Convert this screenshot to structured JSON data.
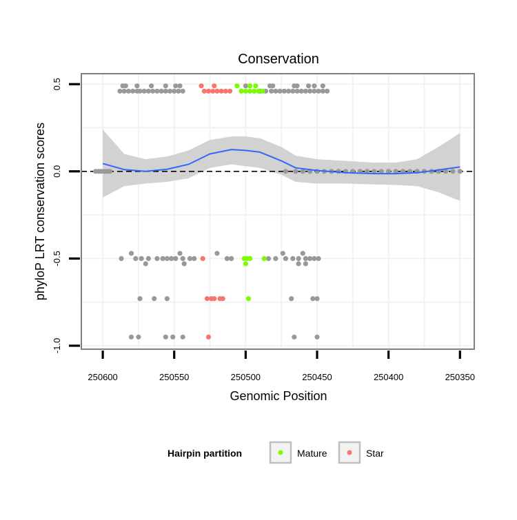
{
  "chart_data": {
    "type": "scatter",
    "title": "Conservation",
    "xlabel": "Genomic Position",
    "ylabel": "phyloP LRT conservation scores",
    "x_reversed": true,
    "xlim": [
      250615,
      250340
    ],
    "ylim": [
      -1.02,
      0.56
    ],
    "x_ticks": [
      250600,
      250550,
      250500,
      250450,
      250400,
      250350
    ],
    "x_tick_labels": [
      "250600",
      "250550",
      "250500",
      "250450",
      "250400",
      "250350"
    ],
    "y_ticks": [
      0.5,
      0.0,
      -0.5,
      -1.0
    ],
    "y_tick_labels": [
      "0.5",
      "0.0",
      "-0.5",
      "-1.0"
    ],
    "reference_line": {
      "y": 0,
      "style": "dashed"
    },
    "legend": {
      "title": "Hairpin partition",
      "position": "bottom",
      "entries": [
        {
          "label": "Mature",
          "color": "#7CFC00"
        },
        {
          "label": "Star",
          "color": "#F8766D"
        }
      ]
    },
    "colors": {
      "other": "#999999",
      "Mature": "#7CFC00",
      "Star": "#F8766D",
      "smooth": "#3366FF",
      "band": "#D0D0D0"
    },
    "series": [
      {
        "name": "Other",
        "points": [
          [
            250588,
            0.46
          ],
          [
            250585,
            0.46
          ],
          [
            250582,
            0.46
          ],
          [
            250579,
            0.46
          ],
          [
            250576,
            0.46
          ],
          [
            250574,
            0.46
          ],
          [
            250571,
            0.46
          ],
          [
            250568,
            0.46
          ],
          [
            250565,
            0.46
          ],
          [
            250562,
            0.46
          ],
          [
            250559,
            0.46
          ],
          [
            250556,
            0.46
          ],
          [
            250553,
            0.46
          ],
          [
            250550,
            0.46
          ],
          [
            250547,
            0.46
          ],
          [
            250544,
            0.46
          ],
          [
            250586,
            0.49
          ],
          [
            250584,
            0.49
          ],
          [
            250576,
            0.49
          ],
          [
            250566,
            0.49
          ],
          [
            250556,
            0.49
          ],
          [
            250549,
            0.49
          ],
          [
            250546,
            0.49
          ],
          [
            250490,
            0.46
          ],
          [
            250486,
            0.46
          ],
          [
            250482,
            0.46
          ],
          [
            250479,
            0.46
          ],
          [
            250476,
            0.46
          ],
          [
            250473,
            0.46
          ],
          [
            250470,
            0.46
          ],
          [
            250467,
            0.46
          ],
          [
            250464,
            0.46
          ],
          [
            250461,
            0.46
          ],
          [
            250458,
            0.46
          ],
          [
            250455,
            0.46
          ],
          [
            250452,
            0.46
          ],
          [
            250449,
            0.46
          ],
          [
            250446,
            0.46
          ],
          [
            250443,
            0.46
          ],
          [
            250483,
            0.49
          ],
          [
            250481,
            0.49
          ],
          [
            250466,
            0.49
          ],
          [
            250464,
            0.49
          ],
          [
            250456,
            0.49
          ],
          [
            250452,
            0.49
          ],
          [
            250446,
            0.49
          ],
          [
            250500,
            0.49
          ],
          [
            250605,
            0
          ],
          [
            250603,
            0
          ],
          [
            250601,
            0
          ],
          [
            250599,
            0
          ],
          [
            250597,
            0
          ],
          [
            250595,
            0
          ],
          [
            250472,
            0
          ],
          [
            250465,
            0
          ],
          [
            250460,
            0
          ],
          [
            250455,
            0
          ],
          [
            250450,
            0
          ],
          [
            250445,
            0
          ],
          [
            250440,
            0
          ],
          [
            250435,
            0
          ],
          [
            250430,
            0
          ],
          [
            250425,
            0
          ],
          [
            250420,
            0
          ],
          [
            250415,
            0
          ],
          [
            250410,
            0
          ],
          [
            250405,
            0
          ],
          [
            250400,
            0
          ],
          [
            250395,
            0
          ],
          [
            250390,
            0
          ],
          [
            250385,
            0
          ],
          [
            250380,
            0
          ],
          [
            250375,
            0
          ],
          [
            250370,
            0
          ],
          [
            250365,
            0
          ],
          [
            250360,
            0
          ],
          [
            250355,
            0
          ],
          [
            250350,
            0
          ],
          [
            250587,
            -0.5
          ],
          [
            250577,
            -0.5
          ],
          [
            250573,
            -0.5
          ],
          [
            250568,
            -0.5
          ],
          [
            250562,
            -0.5
          ],
          [
            250558,
            -0.5
          ],
          [
            250555,
            -0.5
          ],
          [
            250552,
            -0.5
          ],
          [
            250549,
            -0.5
          ],
          [
            250544,
            -0.5
          ],
          [
            250539,
            -0.5
          ],
          [
            250536,
            -0.5
          ],
          [
            250513,
            -0.5
          ],
          [
            250510,
            -0.5
          ],
          [
            250484,
            -0.5
          ],
          [
            250479,
            -0.5
          ],
          [
            250472,
            -0.5
          ],
          [
            250467,
            -0.5
          ],
          [
            250463,
            -0.5
          ],
          [
            250458,
            -0.5
          ],
          [
            250455,
            -0.5
          ],
          [
            250452,
            -0.5
          ],
          [
            250449,
            -0.5
          ],
          [
            250580,
            -0.47
          ],
          [
            250546,
            -0.47
          ],
          [
            250520,
            -0.47
          ],
          [
            250474,
            -0.47
          ],
          [
            250460,
            -0.47
          ],
          [
            250570,
            -0.53
          ],
          [
            250543,
            -0.53
          ],
          [
            250463,
            -0.53
          ],
          [
            250458,
            -0.53
          ],
          [
            250574,
            -0.73
          ],
          [
            250564,
            -0.73
          ],
          [
            250555,
            -0.73
          ],
          [
            250468,
            -0.73
          ],
          [
            250453,
            -0.73
          ],
          [
            250450,
            -0.73
          ],
          [
            250580,
            -0.95
          ],
          [
            250575,
            -0.95
          ],
          [
            250556,
            -0.95
          ],
          [
            250551,
            -0.95
          ],
          [
            250544,
            -0.95
          ],
          [
            250466,
            -0.95
          ],
          [
            250450,
            -0.95
          ]
        ]
      },
      {
        "name": "Mature",
        "points": [
          [
            250503,
            0.46
          ],
          [
            250500,
            0.46
          ],
          [
            250497,
            0.46
          ],
          [
            250494,
            0.46
          ],
          [
            250491,
            0.46
          ],
          [
            250488,
            0.46
          ],
          [
            250506,
            0.49
          ],
          [
            250497,
            0.49
          ],
          [
            250493,
            0.49
          ],
          [
            250501,
            -0.5
          ],
          [
            250499,
            -0.5
          ],
          [
            250497,
            -0.5
          ],
          [
            250487,
            -0.5
          ],
          [
            250500,
            -0.53
          ],
          [
            250498,
            -0.73
          ]
        ]
      },
      {
        "name": "Star",
        "points": [
          [
            250529,
            0.46
          ],
          [
            250526,
            0.46
          ],
          [
            250523,
            0.46
          ],
          [
            250520,
            0.46
          ],
          [
            250517,
            0.46
          ],
          [
            250514,
            0.46
          ],
          [
            250511,
            0.46
          ],
          [
            250531,
            0.49
          ],
          [
            250522,
            0.49
          ],
          [
            250530,
            -0.5
          ],
          [
            250527,
            -0.73
          ],
          [
            250524,
            -0.73
          ],
          [
            250522,
            -0.73
          ],
          [
            250518,
            -0.73
          ],
          [
            250516,
            -0.73
          ],
          [
            250526,
            -0.95
          ]
        ]
      }
    ],
    "smooth": {
      "x": [
        250600,
        250585,
        250570,
        250555,
        250540,
        250525,
        250510,
        250500,
        250490,
        250475,
        250465,
        250450,
        250430,
        250410,
        250395,
        250380,
        250365,
        250350
      ],
      "y": [
        0.045,
        0.01,
        0.0,
        0.012,
        0.04,
        0.1,
        0.125,
        0.12,
        0.11,
        0.06,
        0.02,
        0.005,
        -0.008,
        -0.013,
        -0.013,
        -0.008,
        0.008,
        0.025
      ],
      "lower": [
        -0.15,
        -0.085,
        -0.07,
        -0.06,
        -0.04,
        0.02,
        0.04,
        0.03,
        0.02,
        -0.02,
        -0.06,
        -0.07,
        -0.07,
        -0.075,
        -0.078,
        -0.085,
        -0.12,
        -0.17
      ],
      "upper": [
        0.24,
        0.1,
        0.07,
        0.085,
        0.12,
        0.18,
        0.2,
        0.2,
        0.19,
        0.14,
        0.09,
        0.07,
        0.06,
        0.05,
        0.05,
        0.07,
        0.14,
        0.22
      ]
    }
  }
}
